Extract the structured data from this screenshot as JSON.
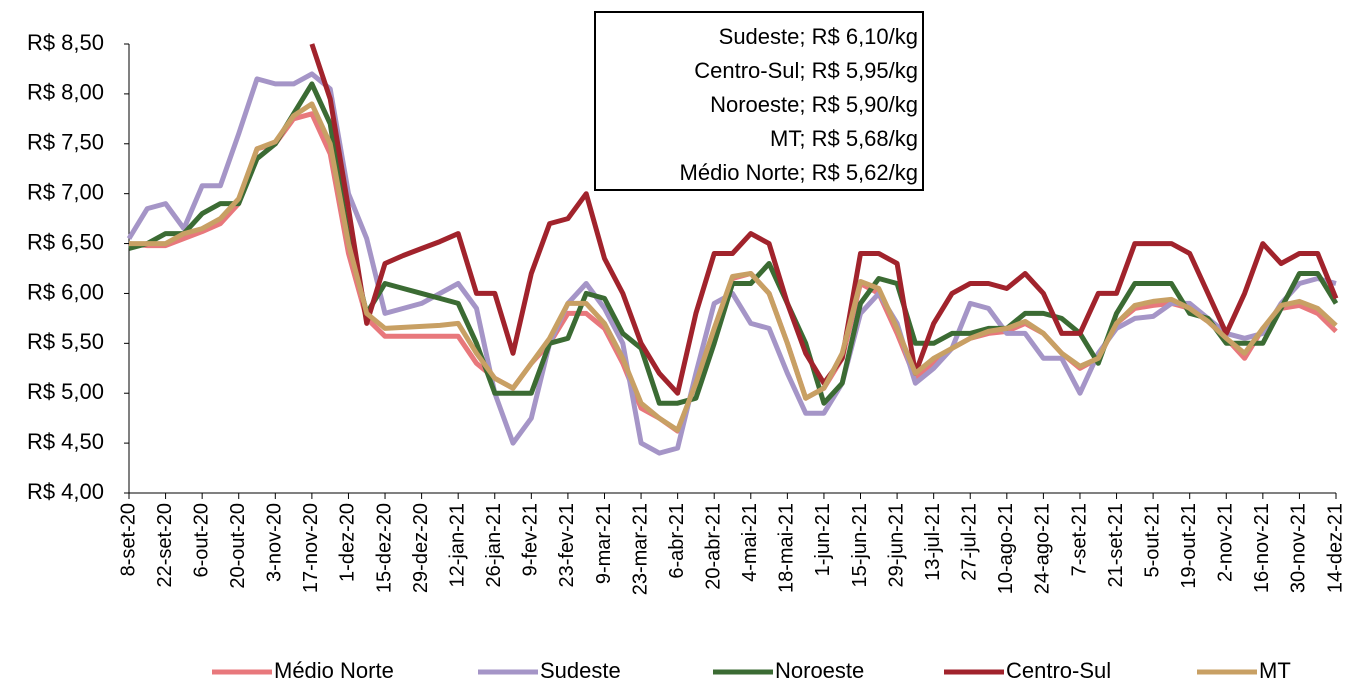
{
  "chart_data": {
    "type": "line",
    "categories": [
      "8-set-20",
      null,
      "22-set-20",
      null,
      "6-out-20",
      null,
      "20-out-20",
      null,
      "3-nov-20",
      null,
      "17-nov-20",
      null,
      "1-dez-20",
      null,
      "15-dez-20",
      null,
      "29-dez-20",
      null,
      "12-jan-21",
      null,
      "26-jan-21",
      null,
      "9-fev-21",
      null,
      "23-fev-21",
      null,
      "9-mar-21",
      null,
      "23-mar-21",
      null,
      "6-abr-21",
      null,
      "20-abr-21",
      null,
      "4-mai-21",
      null,
      "18-mai-21",
      null,
      "1-jun-21",
      null,
      "15-jun-21",
      null,
      "29-jun-21",
      null,
      "13-jul-21",
      null,
      "27-jul-21",
      null,
      "10-ago-21",
      null,
      "24-ago-21",
      null,
      "7-set-21",
      null,
      "21-set-21",
      null,
      "5-out-21",
      null,
      "19-out-21",
      null,
      "2-nov-21",
      null,
      "16-nov-21",
      null,
      "30-nov-21",
      null,
      "14-dez-21"
    ],
    "series": [
      {
        "name": "Médio Norte",
        "color": "#e8787c",
        "values": [
          6.5,
          6.48,
          6.48,
          6.55,
          6.62,
          6.7,
          6.9,
          7.45,
          7.5,
          7.75,
          7.8,
          7.4,
          6.4,
          5.75,
          5.57,
          5.57,
          5.57,
          5.57,
          5.57,
          5.3,
          5.15,
          5.05,
          5.3,
          5.5,
          5.8,
          5.8,
          5.65,
          5.3,
          4.85,
          4.75,
          4.62,
          5.1,
          5.6,
          6.15,
          6.2,
          6.0,
          5.5,
          4.95,
          5.05,
          5.35,
          6.1,
          6.0,
          5.6,
          5.15,
          5.3,
          5.45,
          5.55,
          5.6,
          5.62,
          5.7,
          5.6,
          5.4,
          5.25,
          5.35,
          5.7,
          5.85,
          5.88,
          5.9,
          5.85,
          5.72,
          5.55,
          5.35,
          5.65,
          5.85,
          5.88,
          5.8,
          5.62
        ]
      },
      {
        "name": "Sudeste",
        "color": "#a595c7",
        "values": [
          6.55,
          6.85,
          6.9,
          6.65,
          7.08,
          7.08,
          7.6,
          8.15,
          8.1,
          8.1,
          8.2,
          8.05,
          7.0,
          6.55,
          5.8,
          5.85,
          5.9,
          6.0,
          6.1,
          5.85,
          5.0,
          4.5,
          4.75,
          5.5,
          5.9,
          6.1,
          5.85,
          5.5,
          4.5,
          4.4,
          4.45,
          5.2,
          5.9,
          6.0,
          5.7,
          5.65,
          5.2,
          4.8,
          4.8,
          5.1,
          5.8,
          6.0,
          5.7,
          5.1,
          5.25,
          5.45,
          5.9,
          5.85,
          5.6,
          5.6,
          5.35,
          5.35,
          5.0,
          5.4,
          5.65,
          5.75,
          5.77,
          5.9,
          5.9,
          5.75,
          5.6,
          5.55,
          5.6,
          5.9,
          6.1,
          6.15,
          6.1
        ]
      },
      {
        "name": "Noroeste",
        "color": "#3b6b33",
        "values": [
          6.45,
          6.5,
          6.6,
          6.6,
          6.8,
          6.9,
          6.9,
          7.35,
          7.5,
          7.8,
          8.1,
          7.7,
          6.55,
          5.8,
          6.1,
          6.05,
          6.0,
          5.95,
          5.9,
          5.5,
          5.0,
          5.0,
          5.0,
          5.5,
          5.55,
          6.0,
          5.95,
          5.6,
          5.45,
          4.9,
          4.9,
          4.95,
          5.5,
          6.1,
          6.1,
          6.3,
          5.9,
          5.5,
          4.9,
          5.1,
          5.9,
          6.15,
          6.1,
          5.5,
          5.5,
          5.6,
          5.6,
          5.65,
          5.65,
          5.8,
          5.8,
          5.75,
          5.6,
          5.3,
          5.8,
          6.1,
          6.1,
          6.1,
          5.8,
          5.75,
          5.5,
          5.5,
          5.5,
          5.85,
          6.2,
          6.2,
          5.9
        ]
      },
      {
        "name": "Centro-Sul",
        "color": "#a1232c",
        "values": [
          null,
          null,
          null,
          null,
          null,
          null,
          null,
          null,
          null,
          null,
          8.5,
          7.95,
          6.85,
          5.7,
          6.3,
          6.38,
          6.45,
          6.52,
          6.6,
          6.0,
          6.0,
          5.4,
          6.2,
          6.7,
          6.75,
          7.0,
          6.35,
          6.0,
          5.5,
          5.2,
          5.0,
          5.8,
          6.4,
          6.4,
          6.6,
          6.5,
          5.9,
          5.4,
          5.1,
          5.35,
          6.4,
          6.4,
          6.3,
          5.2,
          5.7,
          6.0,
          6.1,
          6.1,
          6.05,
          6.2,
          6.0,
          5.6,
          5.6,
          6.0,
          6.0,
          6.5,
          6.5,
          6.5,
          6.4,
          6.0,
          5.6,
          6.0,
          6.5,
          6.3,
          6.4,
          6.4,
          5.95
        ]
      },
      {
        "name": "MT",
        "color": "#c8a064",
        "values": [
          6.5,
          6.5,
          6.5,
          6.6,
          6.65,
          6.75,
          6.95,
          7.45,
          7.52,
          7.78,
          7.9,
          7.5,
          6.5,
          5.8,
          5.65,
          5.66,
          5.67,
          5.68,
          5.7,
          5.4,
          5.15,
          5.05,
          5.3,
          5.55,
          5.9,
          5.9,
          5.7,
          5.35,
          4.9,
          4.75,
          4.63,
          5.1,
          5.65,
          6.17,
          6.2,
          6.0,
          5.5,
          4.95,
          5.05,
          5.4,
          6.12,
          6.05,
          5.65,
          5.2,
          5.35,
          5.45,
          5.55,
          5.62,
          5.65,
          5.72,
          5.6,
          5.4,
          5.27,
          5.35,
          5.7,
          5.88,
          5.92,
          5.94,
          5.85,
          5.72,
          5.55,
          5.4,
          5.65,
          5.88,
          5.92,
          5.85,
          5.68
        ]
      }
    ],
    "ylim": [
      4.0,
      8.5
    ],
    "yticks": [
      {
        "value": 4.0,
        "label": "R$ 4,00"
      },
      {
        "value": 4.5,
        "label": "R$ 4,50"
      },
      {
        "value": 5.0,
        "label": "R$ 5,00"
      },
      {
        "value": 5.5,
        "label": "R$ 5,50"
      },
      {
        "value": 6.0,
        "label": "R$ 6,00"
      },
      {
        "value": 6.5,
        "label": "R$ 6,50"
      },
      {
        "value": 7.0,
        "label": "R$ 7,00"
      },
      {
        "value": 7.5,
        "label": "R$ 7,50"
      },
      {
        "value": 8.0,
        "label": "R$ 8,00"
      },
      {
        "value": 8.5,
        "label": "R$ 8,50"
      }
    ],
    "grid": false,
    "legend": "bottom",
    "annotations": [
      "Sudeste; R$ 6,10/kg",
      "Centro-Sul; R$ 5,95/kg",
      "Noroeste; R$ 5,90/kg",
      "MT; R$ 5,68/kg",
      "Médio Norte; R$ 5,62/kg"
    ]
  }
}
